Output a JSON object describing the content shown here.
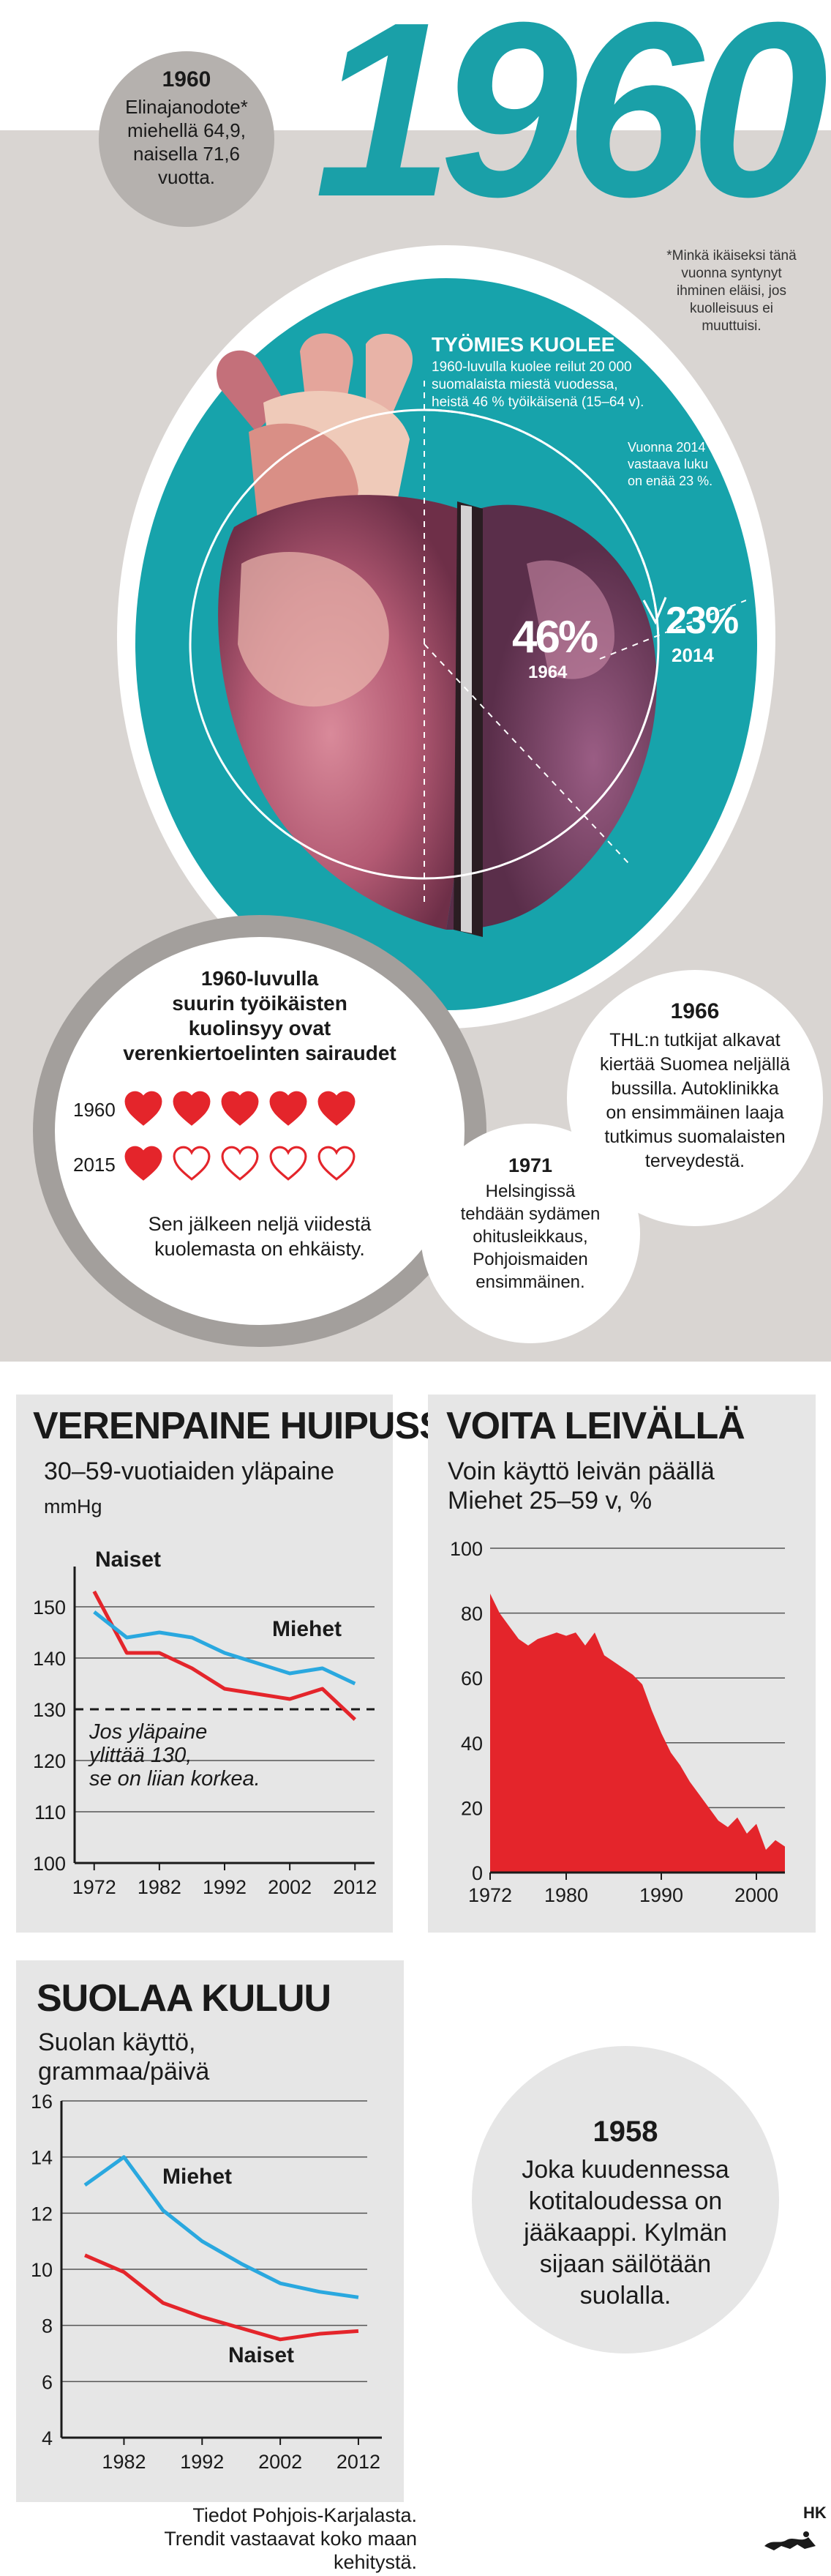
{
  "header": {
    "year": "1960",
    "life_year": "1960",
    "life_text": [
      "Elinajanodote*",
      "miehellä 64,9,",
      "naisella 71,6",
      "vuotta."
    ],
    "footnote": [
      "*Minkä ikäiseksi tänä",
      "vuonna syntynyt",
      "ihminen eläisi, jos",
      "kuolleisuus ei",
      "muuttuisi."
    ]
  },
  "heart": {
    "headline": "TYÖMIES KUOLEE",
    "text": [
      "1960-luvulla kuolee reilut 20 000",
      "suomalaista miestä vuodessa,",
      "heistä 46 % työikäisenä (15–64 v)."
    ],
    "note_2014": [
      "Vuonna 2014",
      "vastaava luku",
      "on enää 23 %."
    ],
    "pct_1964": "46%",
    "label_1964": "1964",
    "pct_2014": "23%",
    "label_2014": "2014"
  },
  "cause_bubble": {
    "title": [
      "1960-luvulla",
      "suurin työikäisten",
      "kuolinsyy ovat",
      "verenkiertoelinten sairaudet"
    ],
    "rows": [
      {
        "label": "1960",
        "filled": 5,
        "total": 5
      },
      {
        "label": "2015",
        "filled": 1,
        "total": 5
      }
    ],
    "footer": [
      "Sen jälkeen neljä viidestä",
      "kuolemasta on ehkäisty."
    ],
    "heart_color": "#e4252b"
  },
  "bubble_1966": {
    "year": "1966",
    "text": [
      "THL:n tutkijat alkavat",
      "kiertää Suomea neljällä",
      "bussilla. Autoklinikka",
      "on ensimmäinen laaja",
      "tutkimus suomalaisten",
      "terveydestä."
    ]
  },
  "bubble_1971": {
    "year": "1971",
    "text": [
      "Helsingissä",
      "tehdään sydämen",
      "ohitusleikkaus,",
      "Pohjoismaiden",
      "ensimmäinen."
    ]
  },
  "bubble_1958": {
    "year": "1958",
    "text": [
      "Joka kuudennessa",
      "kotitaloudessa on",
      "jääkaappi. Kylmän",
      "sijaan säilötään",
      "suolalla."
    ]
  },
  "source": [
    "Tiedot Pohjois-Karjalasta.",
    "Trendit vastaavat koko maan kehitystä."
  ],
  "signature": "HK",
  "colors": {
    "teal": "#1aa0a8",
    "red": "#e4252b",
    "blue": "#2aa8df",
    "panel": "#e6e6e6",
    "band": "#d9d5d2"
  },
  "chart_data": [
    {
      "type": "line",
      "title": "VERENPAINE HUIPUSSA",
      "subtitle": "30–59-vuotiaiden yläpaine",
      "ylabel": "mmHg",
      "ylim": [
        100,
        155
      ],
      "yticks": [
        "100",
        "110",
        "120",
        "130",
        "140",
        "150"
      ],
      "xticks": [
        "1972",
        "1982",
        "1992",
        "2002",
        "2012"
      ],
      "threshold": 130,
      "annotation": [
        "Jos yläpaine",
        "ylittää 130,",
        "se on liian korkea."
      ],
      "series": [
        {
          "name": "Naiset",
          "x": [
            1972,
            1977,
            1982,
            1987,
            1992,
            1997,
            2002,
            2007,
            2012
          ],
          "values": [
            153,
            141,
            141,
            138,
            134,
            133,
            132,
            134,
            128
          ]
        },
        {
          "name": "Miehet",
          "x": [
            1972,
            1977,
            1982,
            1987,
            1992,
            1997,
            2002,
            2007,
            2012
          ],
          "values": [
            149,
            144,
            145,
            144,
            141,
            139,
            137,
            138,
            135
          ]
        }
      ]
    },
    {
      "type": "area",
      "title": "VOITA LEIVÄLLÄ",
      "subtitle": [
        "Voin käyttö leivän päällä",
        "Miehet 25–59 v, %"
      ],
      "ylim": [
        0,
        100
      ],
      "yticks": [
        "0",
        "20",
        "40",
        "60",
        "80",
        "100"
      ],
      "xticks": [
        "1972",
        "1980",
        "1990",
        "2000"
      ],
      "x": [
        1972,
        1973,
        1974,
        1975,
        1976,
        1977,
        1978,
        1979,
        1980,
        1981,
        1982,
        1983,
        1984,
        1985,
        1986,
        1987,
        1988,
        1989,
        1990,
        1991,
        1992,
        1993,
        1994,
        1995,
        1996,
        1997,
        1998,
        1999,
        2000,
        2001,
        2002,
        2003
      ],
      "values": [
        86,
        80,
        76,
        72,
        70,
        72,
        73,
        74,
        73,
        74,
        70,
        74,
        67,
        65,
        63,
        61,
        58,
        50,
        43,
        37,
        33,
        28,
        24,
        20,
        16,
        14,
        17,
        12,
        15,
        7,
        10,
        8
      ]
    },
    {
      "type": "line",
      "title": "SUOLAA KULUU",
      "subtitle": [
        "Suolan käyttö,",
        "grammaa/päivä"
      ],
      "ylim": [
        4,
        16
      ],
      "yticks": [
        "4",
        "6",
        "8",
        "10",
        "12",
        "14",
        "16"
      ],
      "xticks": [
        "1982",
        "1992",
        "2002",
        "2012"
      ],
      "series": [
        {
          "name": "Miehet",
          "x": [
            1977,
            1982,
            1987,
            1992,
            1997,
            2002,
            2007,
            2012
          ],
          "values": [
            13.0,
            14.0,
            12.1,
            11.0,
            10.2,
            9.5,
            9.2,
            9.0
          ]
        },
        {
          "name": "Naiset",
          "x": [
            1977,
            1982,
            1987,
            1992,
            1997,
            2002,
            2007,
            2012
          ],
          "values": [
            10.5,
            9.9,
            8.8,
            8.3,
            7.9,
            7.5,
            7.7,
            7.8
          ]
        }
      ]
    }
  ]
}
